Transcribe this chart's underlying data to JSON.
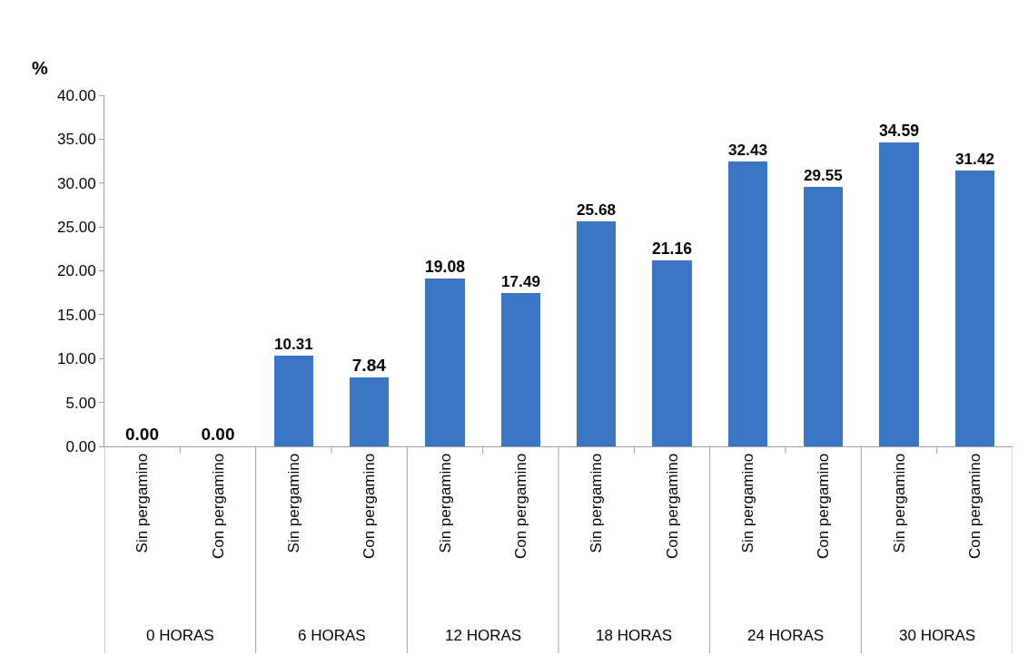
{
  "chart_data": {
    "type": "bar",
    "ylabel": "%",
    "categories": [
      "Sin pergamino",
      "Con pergamino",
      "Sin pergamino",
      "Con pergamino",
      "Sin pergamino",
      "Con pergamino",
      "Sin pergamino",
      "Con pergamino",
      "Sin pergamino",
      "Con pergamino",
      "Sin pergamino",
      "Con pergamino"
    ],
    "values": [
      0,
      0,
      10.31,
      7.84,
      19.08,
      17.49,
      25.68,
      21.16,
      32.43,
      29.55,
      34.59,
      31.42
    ],
    "value_labels": [
      "0.00",
      "0.00",
      "10.31",
      "7.84",
      "19.08",
      "17.49",
      "25.68",
      "21.16",
      "32.43",
      "29.55",
      "34.59",
      "31.42"
    ],
    "color": "#3a76c4",
    "ylim": [
      0,
      40
    ],
    "yticks": [
      {
        "value": 0,
        "label": "0.00"
      },
      {
        "value": 5,
        "label": "5.00"
      },
      {
        "value": 10,
        "label": "10.00"
      },
      {
        "value": 15,
        "label": "15.00"
      },
      {
        "value": 20,
        "label": "20.00"
      },
      {
        "value": 25,
        "label": "25.00"
      },
      {
        "value": 30,
        "label": "30.00"
      },
      {
        "value": 35,
        "label": "35.00"
      },
      {
        "value": 40,
        "label": "40.00"
      }
    ],
    "annotations": [
      "0 HORAS",
      "6 HORAS",
      "12 HORAS",
      "18 HORAS",
      "24 HORAS",
      "30 HORAS"
    ],
    "legend": false
  }
}
